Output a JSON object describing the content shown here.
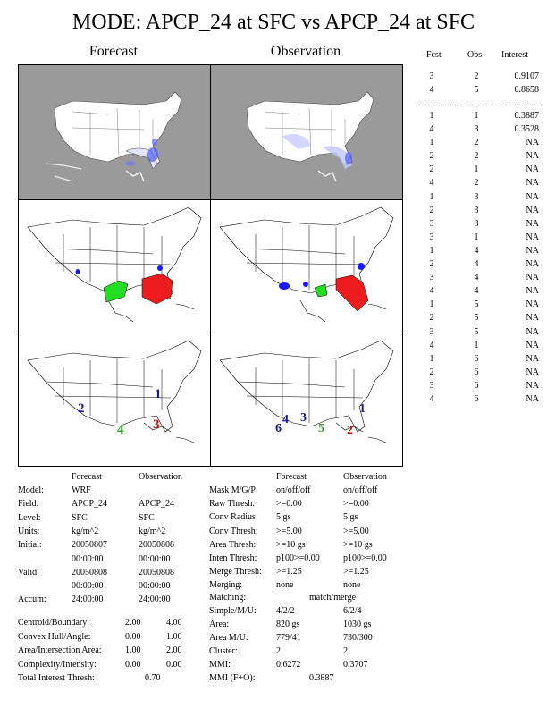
{
  "title": "MODE: APCP_24 at SFC vs APCP_24 at SFC",
  "columns": {
    "forecast": "Forecast",
    "observation": "Observation"
  },
  "interest_table": {
    "headers": [
      "Fcst",
      "Obs",
      "Interest"
    ],
    "top_rows": [
      [
        "3",
        "2",
        "0.9107"
      ],
      [
        "4",
        "5",
        "0.8658"
      ]
    ],
    "rows": [
      [
        "1",
        "1",
        "0.3887"
      ],
      [
        "4",
        "3",
        "0.3528"
      ],
      [
        "1",
        "2",
        "NA"
      ],
      [
        "2",
        "2",
        "NA"
      ],
      [
        "2",
        "1",
        "NA"
      ],
      [
        "4",
        "2",
        "NA"
      ],
      [
        "1",
        "3",
        "NA"
      ],
      [
        "2",
        "3",
        "NA"
      ],
      [
        "3",
        "3",
        "NA"
      ],
      [
        "3",
        "1",
        "NA"
      ],
      [
        "1",
        "4",
        "NA"
      ],
      [
        "2",
        "4",
        "NA"
      ],
      [
        "3",
        "4",
        "NA"
      ],
      [
        "4",
        "4",
        "NA"
      ],
      [
        "1",
        "5",
        "NA"
      ],
      [
        "2",
        "5",
        "NA"
      ],
      [
        "3",
        "5",
        "NA"
      ],
      [
        "4",
        "1",
        "NA"
      ],
      [
        "1",
        "6",
        "NA"
      ],
      [
        "2",
        "6",
        "NA"
      ],
      [
        "3",
        "6",
        "NA"
      ],
      [
        "4",
        "6",
        "NA"
      ]
    ]
  },
  "object_labels": {
    "forecast": [
      {
        "id": "2",
        "color": "#1a1aa8"
      },
      {
        "id": "1",
        "color": "#1a1aa8"
      },
      {
        "id": "4",
        "color": "#2eaa2e"
      },
      {
        "id": "3",
        "color": "#d01010"
      }
    ],
    "observation": [
      {
        "id": "6",
        "color": "#1a1aa8"
      },
      {
        "id": "4",
        "color": "#1a1aa8"
      },
      {
        "id": "3",
        "color": "#1a1aa8"
      },
      {
        "id": "1",
        "color": "#1a1aa8"
      },
      {
        "id": "5",
        "color": "#2eaa2e"
      },
      {
        "id": "2",
        "color": "#d01010"
      }
    ]
  },
  "info_left": {
    "header": {
      "forecast": "Forecast",
      "observation": "Observation"
    },
    "rows": [
      {
        "label": "Model:",
        "f": "WRF",
        "o": ""
      },
      {
        "label": "Field:",
        "f": "APCP_24",
        "o": "APCP_24"
      },
      {
        "label": "Level:",
        "f": "SFC",
        "o": "SFC"
      },
      {
        "label": "Units:",
        "f": "kg/m^2",
        "o": "kg/m^2"
      },
      {
        "label": "Initial:",
        "f": "20050807",
        "o": "20050808"
      },
      {
        "label": "",
        "f": "00:00:00",
        "o": "00:00:00"
      },
      {
        "label": "Valid:",
        "f": "20050808",
        "o": "20050808"
      },
      {
        "label": "",
        "f": "00:00:00",
        "o": "00:00:00"
      },
      {
        "label": "Accum:",
        "f": "24:00:00",
        "o": "24:00:00"
      }
    ],
    "weights": [
      {
        "label": "Centroid/Boundary:",
        "a": "2.00",
        "b": "4.00"
      },
      {
        "label": "Convex Hull/Angle:",
        "a": "0.00",
        "b": "1.00"
      },
      {
        "label": "Area/Intersection Area:",
        "a": "1.00",
        "b": "2.00"
      },
      {
        "label": "Complexity/Intensity:",
        "a": "0.00",
        "b": "0.00"
      }
    ],
    "total_interest": {
      "label": "Total Interest Thresh:",
      "value": "0.70"
    }
  },
  "info_right": {
    "header": {
      "forecast": "Forecast",
      "observation": "Observation"
    },
    "rows": [
      {
        "label": "Mask M/G/P:",
        "f": "on/off/off",
        "o": "on/off/off"
      },
      {
        "label": "Raw Thresh:",
        "f": ">=0.00",
        "o": ">=0.00"
      },
      {
        "label": "Conv Radius:",
        "f": "5 gs",
        "o": "5 gs"
      },
      {
        "label": "Conv Thresh:",
        "f": ">=5.00",
        "o": ">=5.00"
      },
      {
        "label": "Area Thresh:",
        "f": ">=10 gs",
        "o": ">=10 gs"
      },
      {
        "label": "Inten Thresh:",
        "f": "p100>=0.00",
        "o": "p100>=0.00"
      },
      {
        "label": "Merge Thresh:",
        "f": ">=1.25",
        "o": ">=1.25"
      },
      {
        "label": "Merging:",
        "f": "none",
        "o": "none"
      }
    ],
    "matching": {
      "label": "Matching:",
      "value": "match/merge"
    },
    "rows2": [
      {
        "label": "Simple/M/U:",
        "f": "4/2/2",
        "o": "6/2/4"
      },
      {
        "label": "Area:",
        "f": "820 gs",
        "o": "1030 gs"
      },
      {
        "label": "Area M/U:",
        "f": "779/41",
        "o": "730/300"
      },
      {
        "label": "Cluster:",
        "f": "2",
        "o": "2"
      },
      {
        "label": "MMI:",
        "f": "0.6272",
        "o": "0.3707"
      }
    ],
    "mmi_fo": {
      "label": "MMI (F+O):",
      "value": "0.3887"
    }
  }
}
